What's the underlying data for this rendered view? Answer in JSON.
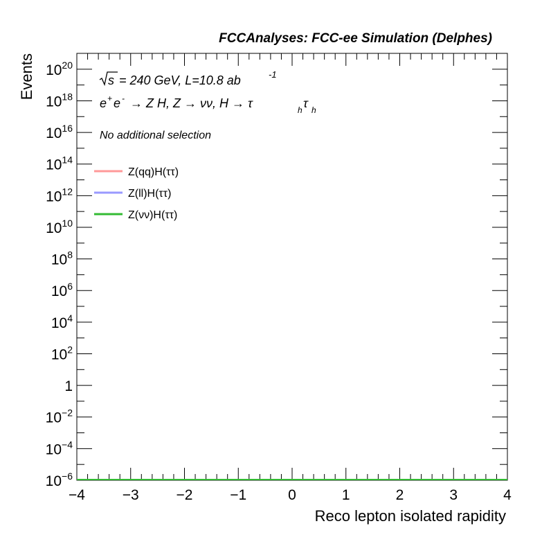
{
  "header": {
    "title": "FCCAnalyses: FCC-ee Simulation (Delphes)"
  },
  "annotations": {
    "sqrt_s": "s",
    "energy_lumi": "= 240 GeV, L=10.8 ab",
    "lumi_exponent": "-1",
    "process_ee": "e",
    "process_ee_plus": "+",
    "process_ee_e": "e",
    "process_ee_minus": "-",
    "process_rest": "→ Z H, Z  → νν, H → τ",
    "tau_sub_1": "h",
    "tau_2": "τ",
    "tau_sub_2": "h",
    "selection": "No additional selection"
  },
  "chart_data": {
    "type": "line",
    "xlabel": "Reco lepton isolated rapidity",
    "ylabel": "Events",
    "xlim": [
      -4,
      4
    ],
    "ylim": [
      1e-06,
      1e+21
    ],
    "yscale": "log",
    "x_ticks": [
      -4,
      -3,
      -2,
      -1,
      0,
      1,
      2,
      3,
      4
    ],
    "x_tick_labels": [
      "−4",
      "−3",
      "−2",
      "−1",
      "0",
      "1",
      "2",
      "3",
      "4"
    ],
    "y_ticks": [
      {
        "exp": 20,
        "base": "10",
        "sup": "20"
      },
      {
        "exp": 18,
        "base": "10",
        "sup": "18"
      },
      {
        "exp": 16,
        "base": "10",
        "sup": "16"
      },
      {
        "exp": 14,
        "base": "10",
        "sup": "14"
      },
      {
        "exp": 12,
        "base": "10",
        "sup": "12"
      },
      {
        "exp": 10,
        "base": "10",
        "sup": "10"
      },
      {
        "exp": 8,
        "base": "10",
        "sup": "8"
      },
      {
        "exp": 6,
        "base": "10",
        "sup": "6"
      },
      {
        "exp": 4,
        "base": "10",
        "sup": "4"
      },
      {
        "exp": 2,
        "base": "10",
        "sup": "2"
      },
      {
        "exp": 0,
        "base": "1",
        "sup": ""
      },
      {
        "exp": -2,
        "base": "10",
        "sup": "−2"
      },
      {
        "exp": -4,
        "base": "10",
        "sup": "−4"
      },
      {
        "exp": -6,
        "base": "10",
        "sup": "−6"
      }
    ],
    "grid": false,
    "legend_position": "top-left",
    "series": [
      {
        "name": "Z(qq)H(ττ)",
        "color": "#ff9999",
        "x": [
          -4,
          4
        ],
        "y": [
          1e-06,
          1e-06
        ]
      },
      {
        "name": "Z(ll)H(ττ)",
        "color": "#9999ff",
        "x": [
          -4,
          4
        ],
        "y": [
          1e-06,
          1e-06
        ]
      },
      {
        "name": "Z(νν)H(ττ)",
        "color": "#33bb33",
        "x": [
          -4,
          4
        ],
        "y": [
          1e-06,
          1e-06
        ]
      }
    ]
  }
}
